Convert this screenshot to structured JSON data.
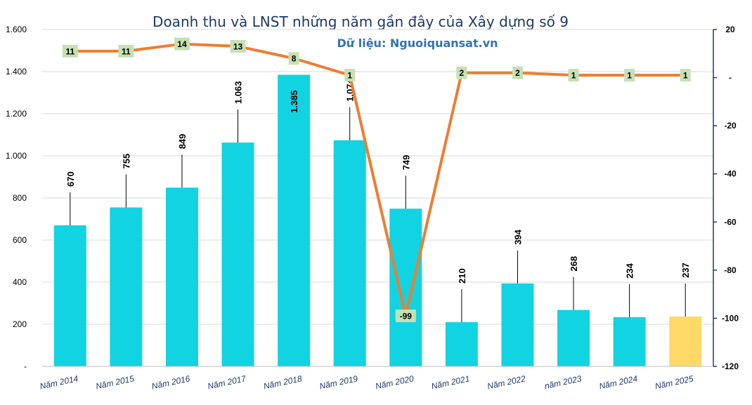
{
  "chart_data": {
    "type": "bar+line",
    "title": "Doanh thu và LNST những năm gần đây của Xây dựng số 9",
    "subtitle": "Dữ liệu: Nguoiquansat.vn",
    "categories": [
      "Năm 2014",
      "Năm 2015",
      "Năm 2016",
      "Năm 2017",
      "Năm 2018",
      "Năm 2019",
      "Năm 2020",
      "Năm 2021",
      "Năm 2022",
      "năm 2023",
      "Năm 2024",
      "Năm 2025"
    ],
    "bar_series": {
      "values": [
        670,
        755,
        849,
        1063,
        1385,
        1074,
        749,
        210,
        394,
        268,
        234,
        237
      ],
      "labels": [
        "670",
        "755",
        "849",
        "1.063",
        "1.385",
        "1.074",
        "749",
        "210",
        "394",
        "268",
        "234",
        "237"
      ],
      "color": "#12d3e2",
      "highlight_color": "#ffd966",
      "highlight_index": 11
    },
    "line_series": {
      "values": [
        11,
        11,
        14,
        13,
        8,
        1,
        -99,
        2,
        2,
        1,
        1,
        1
      ],
      "labels": [
        "11",
        "11",
        "14",
        "13",
        "8",
        "1",
        "-99",
        "2",
        "2",
        "1",
        "1",
        "1"
      ],
      "color": "#ed7d31",
      "label_bg": "#c6e0b4"
    },
    "y_left": {
      "min": 0,
      "max": 1600,
      "ticks": [
        "-",
        "200",
        "400",
        "600",
        "800",
        "1.000",
        "1.200",
        "1.400",
        "1.600"
      ]
    },
    "y_right": {
      "min": -120,
      "max": 20,
      "ticks": [
        "-120",
        "-100",
        "-80",
        "-60",
        "-40",
        "-20",
        "-",
        "20"
      ]
    },
    "grid": true
  }
}
